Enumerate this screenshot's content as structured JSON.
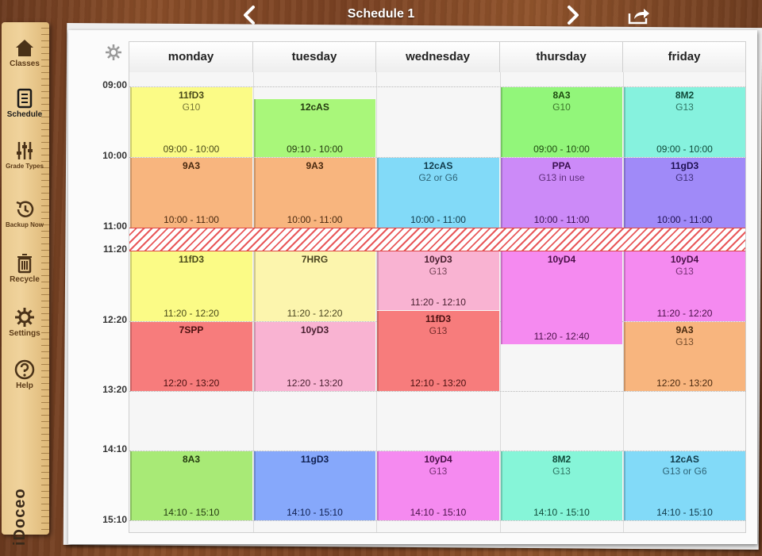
{
  "header": {
    "title": "Schedule 1"
  },
  "sidebar": {
    "items": [
      {
        "label": "Classes",
        "icon": "home-icon"
      },
      {
        "label": "Schedule",
        "icon": "schedule-icon"
      },
      {
        "label": "Grade Types",
        "icon": "sliders-icon"
      },
      {
        "label": "Backup Now",
        "icon": "backup-icon"
      },
      {
        "label": "Recycle",
        "icon": "trash-icon"
      },
      {
        "label": "Settings",
        "icon": "gear-icon"
      },
      {
        "label": "Help",
        "icon": "help-icon"
      }
    ],
    "brand": "iDoceo"
  },
  "days": [
    "monday",
    "tuesday",
    "wednesday",
    "thursday",
    "friday"
  ],
  "times": [
    "09:00",
    "10:00",
    "11:00",
    "11:20",
    "12:20",
    "13:20",
    "14:10",
    "15:10"
  ],
  "lessons": {
    "mon_1": {
      "cls": "11fD3",
      "room": "G10",
      "time": "09:00 - 10:00",
      "color": "#fbfb86",
      "text": "#4a4a1a"
    },
    "mon_2": {
      "cls": "9A3",
      "room": "",
      "time": "10:00 - 11:00",
      "color": "#f8b57e",
      "text": "#4a2a10"
    },
    "mon_3": {
      "cls": "11fD3",
      "room": "",
      "time": "11:20 - 12:20",
      "color": "#fbfb86",
      "text": "#4a4a1a"
    },
    "mon_4": {
      "cls": "7SPP",
      "room": "",
      "time": "12:20 - 13:20",
      "color": "#f77c7c",
      "text": "#4a1010"
    },
    "mon_5": {
      "cls": "8A3",
      "room": "",
      "time": "14:10 - 15:10",
      "color": "#a8ea76",
      "text": "#243a10"
    },
    "tue_1": {
      "cls": "12cAS",
      "room": "",
      "time": "09:10 - 10:00",
      "color": "#a9f77a",
      "text": "#243a10"
    },
    "tue_2": {
      "cls": "9A3",
      "room": "",
      "time": "10:00 - 11:00",
      "color": "#f8b57e",
      "text": "#4a2a10"
    },
    "tue_3": {
      "cls": "7HRG",
      "room": "",
      "time": "11:20 - 12:20",
      "color": "#fcf5ad",
      "text": "#4a4520"
    },
    "tue_4": {
      "cls": "10yD3",
      "room": "",
      "time": "12:20 - 13:20",
      "color": "#f9b3d2",
      "text": "#4a2030"
    },
    "tue_5": {
      "cls": "11gD3",
      "room": "",
      "time": "14:10 - 15:10",
      "color": "#86a8fb",
      "text": "#102050"
    },
    "wed_1": {
      "cls": "12cAS",
      "room": "G2 or G6",
      "time": "10:00 - 11:00",
      "color": "#82daf8",
      "text": "#103a4a"
    },
    "wed_2": {
      "cls": "10yD3",
      "room": "G13",
      "time": "11:20 - 12:10",
      "color": "#f9b3d2",
      "text": "#4a2030"
    },
    "wed_3": {
      "cls": "11fD3",
      "room": "G13",
      "time": "12:10 - 13:20",
      "color": "#f77c7c",
      "text": "#4a1010"
    },
    "wed_4": {
      "cls": "10yD4",
      "room": "G13",
      "time": "14:10 - 15:10",
      "color": "#f58af0",
      "text": "#4a1048"
    },
    "thu_1": {
      "cls": "8A3",
      "room": "G10",
      "time": "09:00 - 10:00",
      "color": "#92f67a",
      "text": "#1e4a10"
    },
    "thu_2": {
      "cls": "PPA",
      "room": "G13 in use",
      "time": "10:00 - 11:00",
      "color": "#cc8af8",
      "text": "#3a1050"
    },
    "thu_3": {
      "cls": "10yD4",
      "room": "",
      "time": "11:20 - 12:40",
      "color": "#f58af0",
      "text": "#4a1048"
    },
    "thu_4": {
      "cls": "8M2",
      "room": "G13",
      "time": "14:10 - 15:10",
      "color": "#86f5d8",
      "text": "#104a3a"
    },
    "fri_1": {
      "cls": "8M2",
      "room": "G13",
      "time": "09:00 - 10:00",
      "color": "#86f2de",
      "text": "#104a3a"
    },
    "fri_2": {
      "cls": "11gD3",
      "room": "G13",
      "time": "10:00 - 11:00",
      "color": "#a08af8",
      "text": "#1e1050"
    },
    "fri_3": {
      "cls": "10yD4",
      "room": "G13",
      "time": "11:20 - 12:20",
      "color": "#f58af0",
      "text": "#4a1048"
    },
    "fri_4": {
      "cls": "9A3",
      "room": "G13",
      "time": "12:20 - 13:20",
      "color": "#f8b57e",
      "text": "#4a2a10"
    },
    "fri_5": {
      "cls": "12cAS",
      "room": "G13 or G6",
      "time": "14:10 - 15:10",
      "color": "#82daf8",
      "text": "#103a4a"
    }
  }
}
